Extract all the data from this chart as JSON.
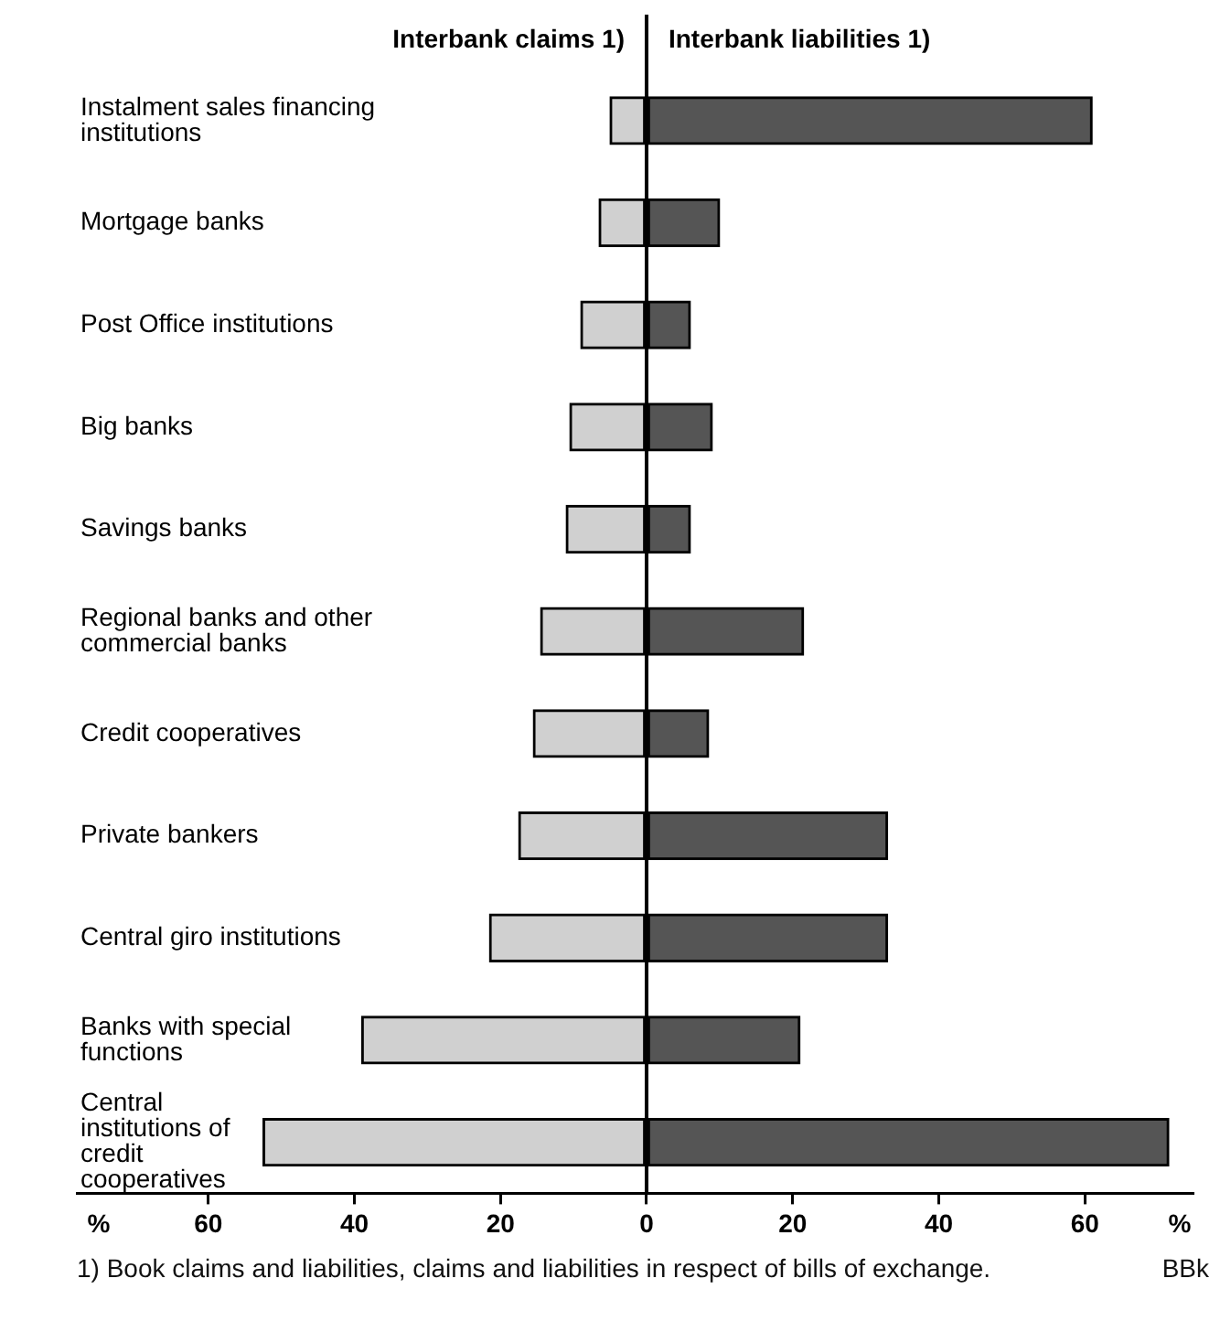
{
  "chart_data": {
    "type": "bar",
    "orientation": "horizontal",
    "categories": [
      "Instalment sales financing institutions",
      "Mortgage banks",
      "Post Office institutions",
      "Big banks",
      "Savings banks",
      "Regional banks and other commercial banks",
      "Credit cooperatives",
      "Private bankers",
      "Central giro institutions",
      "Banks with special functions",
      "Central institutions of credit cooperatives"
    ],
    "series": [
      {
        "name": "Interbank claims 1)",
        "color": "#d0d0d0",
        "values": [
          -5,
          -6.5,
          -9,
          -10.5,
          -11,
          -14.5,
          -15.5,
          -17.5,
          -21.5,
          -39,
          -52.5
        ]
      },
      {
        "name": "Interbank liabilities 1)",
        "color": "#555555",
        "values": [
          61,
          10,
          6,
          9,
          6,
          21.5,
          8.5,
          33,
          33,
          21,
          71.5
        ]
      }
    ],
    "xlim": [
      -78,
      75
    ],
    "xticks": [
      {
        "value": -75,
        "label": "%"
      },
      {
        "value": -60,
        "label": "60"
      },
      {
        "value": -40,
        "label": "40"
      },
      {
        "value": -20,
        "label": "20"
      },
      0,
      20,
      40,
      60,
      {
        "value": 73,
        "label": "%"
      }
    ],
    "ref_lines": [
      {
        "axis": "x",
        "value": 0
      }
    ],
    "grid": false,
    "legend": false,
    "stacked": true,
    "annotations": [
      "1) Book claims and liabilities, claims and liabilities in respect of bills of exchange.",
      "BBk"
    ]
  }
}
